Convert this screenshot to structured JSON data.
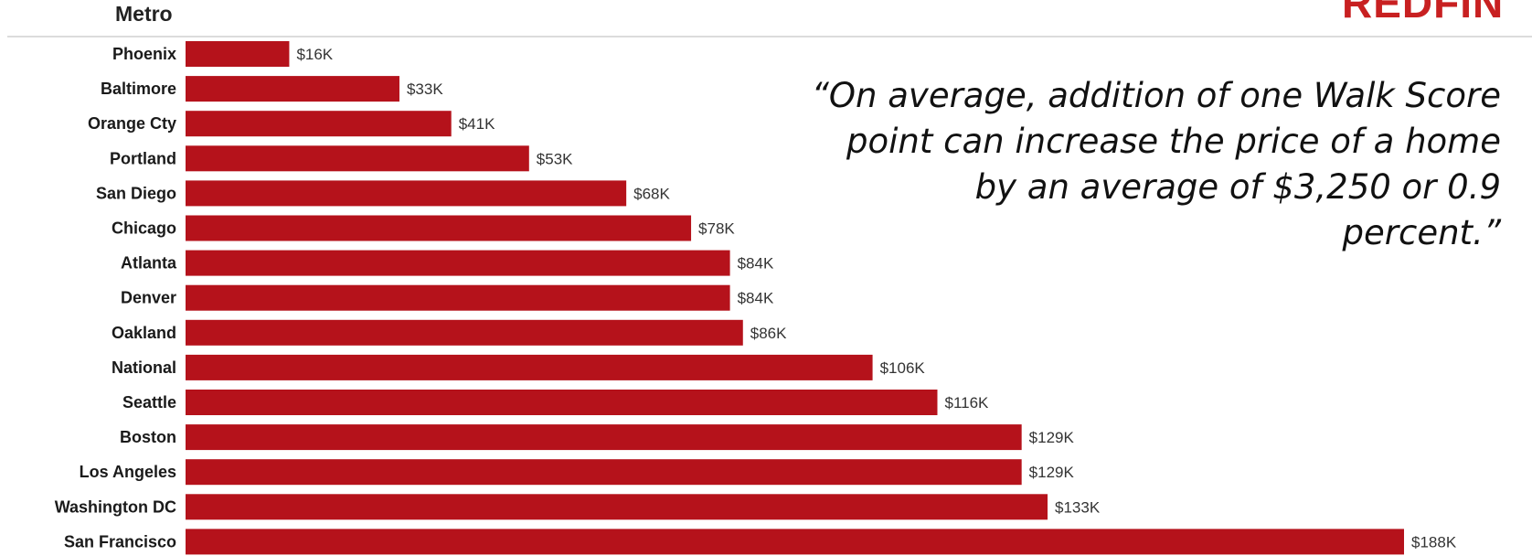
{
  "header": {
    "category_label": "Metro",
    "logo_text": "REDFIN"
  },
  "quote": {
    "text": "“On average, addition of one Walk Score point can increase the price of a home by an average of  $3,250 or 0.9 percent.”"
  },
  "colors": {
    "bar": "#b5121b",
    "label_text": "#1a1a1a",
    "value_text": "#333333",
    "brand": "#c82021"
  },
  "chart_data": {
    "type": "bar",
    "orientation": "horizontal",
    "title": "",
    "xlabel": "",
    "ylabel": "Metro",
    "grid": false,
    "legend": "none",
    "xlim": [
      0,
      188000
    ],
    "categories": [
      "Phoenix",
      "Baltimore",
      "Orange Cty",
      "Portland",
      "San Diego",
      "Chicago",
      "Atlanta",
      "Denver",
      "Oakland",
      "National",
      "Seattle",
      "Boston",
      "Los Angeles",
      "Washington DC",
      "San Francisco"
    ],
    "values": [
      16000,
      33000,
      41000,
      53000,
      68000,
      78000,
      84000,
      84000,
      86000,
      106000,
      116000,
      129000,
      129000,
      133000,
      188000
    ],
    "value_labels": [
      "$16K",
      "$33K",
      "$41K",
      "$53K",
      "$68K",
      "$78K",
      "$84K",
      "$84K",
      "$86K",
      "$106K",
      "$116K",
      "$129K",
      "$129K",
      "$133K",
      "$188K"
    ]
  }
}
